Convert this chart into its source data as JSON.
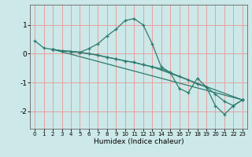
{
  "xlabel": "Humidex (Indice chaleur)",
  "ylabel": "",
  "bg_color": "#cce8e8",
  "grid_color": "#e8a0a0",
  "line_color": "#2e7b6e",
  "xlim": [
    -0.5,
    23.5
  ],
  "ylim": [
    -2.6,
    1.7
  ],
  "xticks": [
    0,
    1,
    2,
    3,
    4,
    5,
    6,
    7,
    8,
    9,
    10,
    11,
    12,
    13,
    14,
    15,
    16,
    17,
    18,
    19,
    20,
    21,
    22,
    23
  ],
  "yticks": [
    -2,
    -1,
    0,
    1
  ],
  "lines": [
    {
      "x": [
        0,
        1,
        2,
        3,
        4,
        5,
        6,
        7,
        8,
        9,
        10,
        11,
        12,
        13,
        14,
        15,
        16,
        17,
        18,
        19,
        20,
        21,
        22,
        23
      ],
      "y": [
        0.45,
        0.2,
        0.15,
        0.1,
        0.08,
        0.05,
        0.18,
        0.35,
        0.62,
        0.85,
        1.15,
        1.22,
        1.0,
        0.35,
        -0.45,
        -0.65,
        -1.2,
        -1.35,
        -0.85,
        -1.15,
        -1.8,
        -2.1,
        -1.8,
        -1.6
      ]
    },
    {
      "x": [
        2,
        3,
        4,
        5,
        6,
        7,
        8,
        9,
        10,
        11,
        12,
        13,
        23
      ],
      "y": [
        0.15,
        0.1,
        0.08,
        0.05,
        0.0,
        -0.05,
        -0.12,
        -0.18,
        -0.25,
        -0.3,
        -0.38,
        -0.45,
        -1.6
      ]
    },
    {
      "x": [
        2,
        3,
        4,
        5,
        6,
        7,
        8,
        9,
        10,
        11,
        12,
        13,
        14,
        15,
        16,
        17,
        18,
        19,
        20,
        21,
        22,
        23
      ],
      "y": [
        0.15,
        0.1,
        0.08,
        0.05,
        0.0,
        -0.05,
        -0.12,
        -0.18,
        -0.25,
        -0.3,
        -0.38,
        -0.45,
        -0.52,
        -0.65,
        -0.78,
        -0.9,
        -1.05,
        -1.15,
        -1.4,
        -1.65,
        -1.8,
        -1.6
      ]
    },
    {
      "x": [
        2,
        23
      ],
      "y": [
        0.15,
        -1.6
      ]
    }
  ]
}
